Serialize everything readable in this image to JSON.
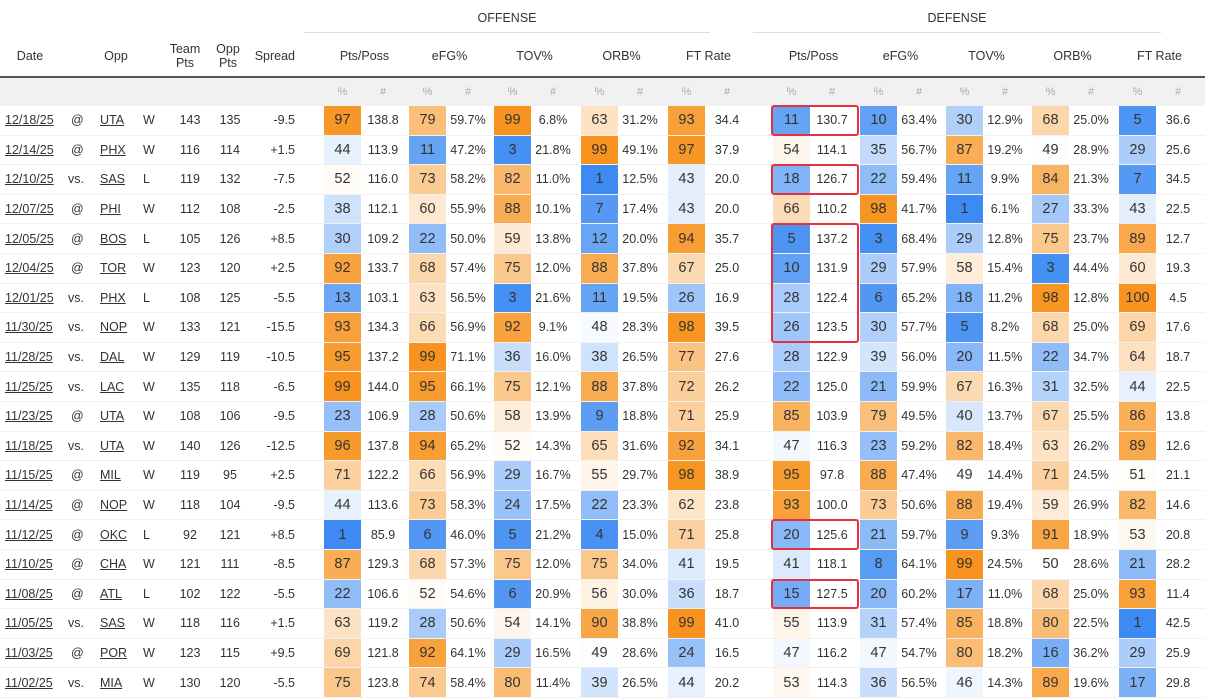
{
  "header": {
    "offense_label": "OFFENSE",
    "defense_label": "DEFENSE",
    "columns": {
      "date": "Date",
      "opp": "Opp",
      "team_pts": "Team Pts",
      "opp_pts": "Opp Pts",
      "spread": "Spread"
    },
    "stat_groups": [
      "Pts/Poss",
      "eFG%",
      "TOV%",
      "ORB%",
      "FT Rate"
    ],
    "pct_label": "%",
    "num_label": "#"
  },
  "colors": {
    "low": "#3d8bf2",
    "mid": "#ffffff",
    "high": "#f7931e",
    "highlight_border": "#e5313f",
    "rule": "#555555",
    "subheader_bg": "#f1f1f1"
  },
  "highlight_groups": [
    [
      0,
      0
    ],
    [
      2,
      2
    ],
    [
      4,
      7
    ],
    [
      14,
      14
    ],
    [
      16,
      16
    ]
  ],
  "rows": [
    {
      "date": "12/18/25",
      "venue": "@",
      "opp": "UTA",
      "result": "W",
      "team_pts": "143",
      "opp_pts": "135",
      "spread": "-9.5",
      "off": [
        [
          97,
          "138.8"
        ],
        [
          79,
          "59.7%"
        ],
        [
          99,
          "6.8%"
        ],
        [
          63,
          "31.2%"
        ],
        [
          93,
          "34.4"
        ]
      ],
      "def": [
        [
          11,
          "130.7"
        ],
        [
          10,
          "63.4%"
        ],
        [
          30,
          "12.9%"
        ],
        [
          68,
          "25.0%"
        ],
        [
          5,
          "36.6"
        ]
      ]
    },
    {
      "date": "12/14/25",
      "venue": "@",
      "opp": "PHX",
      "result": "W",
      "team_pts": "116",
      "opp_pts": "114",
      "spread": "+1.5",
      "off": [
        [
          44,
          "113.9"
        ],
        [
          11,
          "47.2%"
        ],
        [
          3,
          "21.8%"
        ],
        [
          99,
          "49.1%"
        ],
        [
          97,
          "37.9"
        ]
      ],
      "def": [
        [
          54,
          "114.1"
        ],
        [
          35,
          "56.7%"
        ],
        [
          87,
          "19.2%"
        ],
        [
          49,
          "28.9%"
        ],
        [
          29,
          "25.6"
        ]
      ]
    },
    {
      "date": "12/10/25",
      "venue": "vs.",
      "opp": "SAS",
      "result": "L",
      "team_pts": "119",
      "opp_pts": "132",
      "spread": "-7.5",
      "off": [
        [
          52,
          "116.0"
        ],
        [
          73,
          "58.2%"
        ],
        [
          82,
          "11.0%"
        ],
        [
          1,
          "12.5%"
        ],
        [
          43,
          "20.0"
        ]
      ],
      "def": [
        [
          18,
          "126.7"
        ],
        [
          22,
          "59.4%"
        ],
        [
          11,
          "9.9%"
        ],
        [
          84,
          "21.3%"
        ],
        [
          7,
          "34.5"
        ]
      ]
    },
    {
      "date": "12/07/25",
      "venue": "@",
      "opp": "PHI",
      "result": "W",
      "team_pts": "112",
      "opp_pts": "108",
      "spread": "-2.5",
      "off": [
        [
          38,
          "112.1"
        ],
        [
          60,
          "55.9%"
        ],
        [
          88,
          "10.1%"
        ],
        [
          7,
          "17.4%"
        ],
        [
          43,
          "20.0"
        ]
      ],
      "def": [
        [
          66,
          "110.2"
        ],
        [
          98,
          "41.7%"
        ],
        [
          1,
          "6.1%"
        ],
        [
          27,
          "33.3%"
        ],
        [
          43,
          "22.5"
        ]
      ]
    },
    {
      "date": "12/05/25",
      "venue": "@",
      "opp": "BOS",
      "result": "L",
      "team_pts": "105",
      "opp_pts": "126",
      "spread": "+8.5",
      "off": [
        [
          30,
          "109.2"
        ],
        [
          22,
          "50.0%"
        ],
        [
          59,
          "13.8%"
        ],
        [
          12,
          "20.0%"
        ],
        [
          94,
          "35.7"
        ]
      ],
      "def": [
        [
          5,
          "137.2"
        ],
        [
          3,
          "68.4%"
        ],
        [
          29,
          "12.8%"
        ],
        [
          75,
          "23.7%"
        ],
        [
          89,
          "12.7"
        ]
      ]
    },
    {
      "date": "12/04/25",
      "venue": "@",
      "opp": "TOR",
      "result": "W",
      "team_pts": "123",
      "opp_pts": "120",
      "spread": "+2.5",
      "off": [
        [
          92,
          "133.7"
        ],
        [
          68,
          "57.4%"
        ],
        [
          75,
          "12.0%"
        ],
        [
          88,
          "37.8%"
        ],
        [
          67,
          "25.0"
        ]
      ],
      "def": [
        [
          10,
          "131.9"
        ],
        [
          29,
          "57.9%"
        ],
        [
          58,
          "15.4%"
        ],
        [
          3,
          "44.4%"
        ],
        [
          60,
          "19.3"
        ]
      ]
    },
    {
      "date": "12/01/25",
      "venue": "vs.",
      "opp": "PHX",
      "result": "L",
      "team_pts": "108",
      "opp_pts": "125",
      "spread": "-5.5",
      "off": [
        [
          13,
          "103.1"
        ],
        [
          63,
          "56.5%"
        ],
        [
          3,
          "21.6%"
        ],
        [
          11,
          "19.5%"
        ],
        [
          26,
          "16.9"
        ]
      ],
      "def": [
        [
          28,
          "122.4"
        ],
        [
          6,
          "65.2%"
        ],
        [
          18,
          "11.2%"
        ],
        [
          98,
          "12.8%"
        ],
        [
          100,
          "4.5"
        ]
      ]
    },
    {
      "date": "11/30/25",
      "venue": "vs.",
      "opp": "NOP",
      "result": "W",
      "team_pts": "133",
      "opp_pts": "121",
      "spread": "-15.5",
      "off": [
        [
          93,
          "134.3"
        ],
        [
          66,
          "56.9%"
        ],
        [
          92,
          "9.1%"
        ],
        [
          48,
          "28.3%"
        ],
        [
          98,
          "39.5"
        ]
      ],
      "def": [
        [
          26,
          "123.5"
        ],
        [
          30,
          "57.7%"
        ],
        [
          5,
          "8.2%"
        ],
        [
          68,
          "25.0%"
        ],
        [
          69,
          "17.6"
        ]
      ]
    },
    {
      "date": "11/28/25",
      "venue": "vs.",
      "opp": "DAL",
      "result": "W",
      "team_pts": "129",
      "opp_pts": "119",
      "spread": "-10.5",
      "off": [
        [
          95,
          "137.2"
        ],
        [
          99,
          "71.1%"
        ],
        [
          36,
          "16.0%"
        ],
        [
          38,
          "26.5%"
        ],
        [
          77,
          "27.6"
        ]
      ],
      "def": [
        [
          28,
          "122.9"
        ],
        [
          39,
          "56.0%"
        ],
        [
          20,
          "11.5%"
        ],
        [
          22,
          "34.7%"
        ],
        [
          64,
          "18.7"
        ]
      ]
    },
    {
      "date": "11/25/25",
      "venue": "vs.",
      "opp": "LAC",
      "result": "W",
      "team_pts": "135",
      "opp_pts": "118",
      "spread": "-6.5",
      "off": [
        [
          99,
          "144.0"
        ],
        [
          95,
          "66.1%"
        ],
        [
          75,
          "12.1%"
        ],
        [
          88,
          "37.8%"
        ],
        [
          72,
          "26.2"
        ]
      ],
      "def": [
        [
          22,
          "125.0"
        ],
        [
          21,
          "59.9%"
        ],
        [
          67,
          "16.3%"
        ],
        [
          31,
          "32.5%"
        ],
        [
          44,
          "22.5"
        ]
      ]
    },
    {
      "date": "11/23/25",
      "venue": "@",
      "opp": "UTA",
      "result": "W",
      "team_pts": "108",
      "opp_pts": "106",
      "spread": "-9.5",
      "off": [
        [
          23,
          "106.9"
        ],
        [
          28,
          "50.6%"
        ],
        [
          58,
          "13.9%"
        ],
        [
          9,
          "18.8%"
        ],
        [
          71,
          "25.9"
        ]
      ],
      "def": [
        [
          85,
          "103.9"
        ],
        [
          79,
          "49.5%"
        ],
        [
          40,
          "13.7%"
        ],
        [
          67,
          "25.5%"
        ],
        [
          86,
          "13.8"
        ]
      ]
    },
    {
      "date": "11/18/25",
      "venue": "vs.",
      "opp": "UTA",
      "result": "W",
      "team_pts": "140",
      "opp_pts": "126",
      "spread": "-12.5",
      "off": [
        [
          96,
          "137.8"
        ],
        [
          94,
          "65.2%"
        ],
        [
          52,
          "14.3%"
        ],
        [
          65,
          "31.6%"
        ],
        [
          92,
          "34.1"
        ]
      ],
      "def": [
        [
          47,
          "116.3"
        ],
        [
          23,
          "59.2%"
        ],
        [
          82,
          "18.4%"
        ],
        [
          63,
          "26.2%"
        ],
        [
          89,
          "12.6"
        ]
      ]
    },
    {
      "date": "11/15/25",
      "venue": "@",
      "opp": "MIL",
      "result": "W",
      "team_pts": "119",
      "opp_pts": "95",
      "spread": "+2.5",
      "off": [
        [
          71,
          "122.2"
        ],
        [
          66,
          "56.9%"
        ],
        [
          29,
          "16.7%"
        ],
        [
          55,
          "29.7%"
        ],
        [
          98,
          "38.9"
        ]
      ],
      "def": [
        [
          95,
          "97.8"
        ],
        [
          88,
          "47.4%"
        ],
        [
          49,
          "14.4%"
        ],
        [
          71,
          "24.5%"
        ],
        [
          51,
          "21.1"
        ]
      ]
    },
    {
      "date": "11/14/25",
      "venue": "@",
      "opp": "NOP",
      "result": "W",
      "team_pts": "118",
      "opp_pts": "104",
      "spread": "-9.5",
      "off": [
        [
          44,
          "113.6"
        ],
        [
          73,
          "58.3%"
        ],
        [
          24,
          "17.5%"
        ],
        [
          22,
          "23.3%"
        ],
        [
          62,
          "23.8"
        ]
      ],
      "def": [
        [
          93,
          "100.0"
        ],
        [
          73,
          "50.6%"
        ],
        [
          88,
          "19.4%"
        ],
        [
          59,
          "26.9%"
        ],
        [
          82,
          "14.6"
        ]
      ]
    },
    {
      "date": "11/12/25",
      "venue": "@",
      "opp": "OKC",
      "result": "L",
      "team_pts": "92",
      "opp_pts": "121",
      "spread": "+8.5",
      "off": [
        [
          1,
          "85.9"
        ],
        [
          6,
          "46.0%"
        ],
        [
          5,
          "21.2%"
        ],
        [
          4,
          "15.0%"
        ],
        [
          71,
          "25.8"
        ]
      ],
      "def": [
        [
          20,
          "125.6"
        ],
        [
          21,
          "59.7%"
        ],
        [
          9,
          "9.3%"
        ],
        [
          91,
          "18.9%"
        ],
        [
          53,
          "20.8"
        ]
      ]
    },
    {
      "date": "11/10/25",
      "venue": "@",
      "opp": "CHA",
      "result": "W",
      "team_pts": "121",
      "opp_pts": "111",
      "spread": "-8.5",
      "off": [
        [
          87,
          "129.3"
        ],
        [
          68,
          "57.3%"
        ],
        [
          75,
          "12.0%"
        ],
        [
          75,
          "34.0%"
        ],
        [
          41,
          "19.5"
        ]
      ],
      "def": [
        [
          41,
          "118.1"
        ],
        [
          8,
          "64.1%"
        ],
        [
          99,
          "24.5%"
        ],
        [
          50,
          "28.6%"
        ],
        [
          21,
          "28.2"
        ]
      ]
    },
    {
      "date": "11/08/25",
      "venue": "@",
      "opp": "ATL",
      "result": "L",
      "team_pts": "102",
      "opp_pts": "122",
      "spread": "-5.5",
      "off": [
        [
          22,
          "106.6"
        ],
        [
          52,
          "54.6%"
        ],
        [
          6,
          "20.9%"
        ],
        [
          56,
          "30.0%"
        ],
        [
          36,
          "18.7"
        ]
      ],
      "def": [
        [
          15,
          "127.5"
        ],
        [
          20,
          "60.2%"
        ],
        [
          17,
          "11.0%"
        ],
        [
          68,
          "25.0%"
        ],
        [
          93,
          "11.4"
        ]
      ]
    },
    {
      "date": "11/05/25",
      "venue": "vs.",
      "opp": "SAS",
      "result": "W",
      "team_pts": "118",
      "opp_pts": "116",
      "spread": "+1.5",
      "off": [
        [
          63,
          "119.2"
        ],
        [
          28,
          "50.6%"
        ],
        [
          54,
          "14.1%"
        ],
        [
          90,
          "38.8%"
        ],
        [
          99,
          "41.0"
        ]
      ],
      "def": [
        [
          55,
          "113.9"
        ],
        [
          31,
          "57.4%"
        ],
        [
          85,
          "18.8%"
        ],
        [
          80,
          "22.5%"
        ],
        [
          1,
          "42.5"
        ]
      ]
    },
    {
      "date": "11/03/25",
      "venue": "@",
      "opp": "POR",
      "result": "W",
      "team_pts": "123",
      "opp_pts": "115",
      "spread": "+9.5",
      "off": [
        [
          69,
          "121.8"
        ],
        [
          92,
          "64.1%"
        ],
        [
          29,
          "16.5%"
        ],
        [
          49,
          "28.6%"
        ],
        [
          24,
          "16.5"
        ]
      ],
      "def": [
        [
          47,
          "116.2"
        ],
        [
          47,
          "54.7%"
        ],
        [
          80,
          "18.2%"
        ],
        [
          16,
          "36.2%"
        ],
        [
          29,
          "25.9"
        ]
      ]
    },
    {
      "date": "11/02/25",
      "venue": "vs.",
      "opp": "MIA",
      "result": "W",
      "team_pts": "130",
      "opp_pts": "120",
      "spread": "-5.5",
      "off": [
        [
          75,
          "123.8"
        ],
        [
          74,
          "58.4%"
        ],
        [
          80,
          "11.4%"
        ],
        [
          39,
          "26.5%"
        ],
        [
          44,
          "20.2"
        ]
      ],
      "def": [
        [
          53,
          "114.3"
        ],
        [
          36,
          "56.5%"
        ],
        [
          46,
          "14.3%"
        ],
        [
          89,
          "19.6%"
        ],
        [
          17,
          "29.8"
        ]
      ]
    }
  ]
}
